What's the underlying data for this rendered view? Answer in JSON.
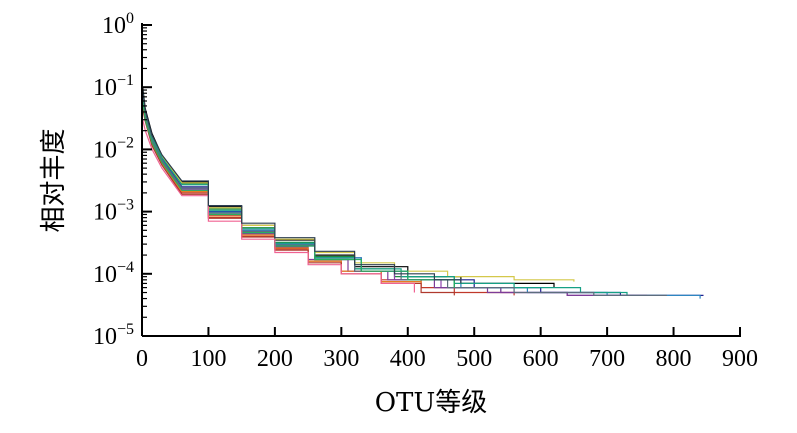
{
  "chart_data": {
    "type": "line",
    "title": "",
    "xlabel": "OTU等级",
    "ylabel": "相对丰度",
    "xlim": [
      0,
      900
    ],
    "ylim": [
      1e-05,
      1
    ],
    "yscale": "log",
    "grid": false,
    "legend": "none",
    "x_ticks": [
      0,
      100,
      200,
      300,
      400,
      500,
      600,
      700,
      800,
      900
    ],
    "x_tick_labels": [
      "0",
      "100",
      "200",
      "300",
      "400",
      "500",
      "600",
      "700",
      "800",
      "900"
    ],
    "y_ticks": [
      {
        "value": 1,
        "base": "10",
        "exp": "0"
      },
      {
        "value": 0.1,
        "base": "10",
        "exp": "−1"
      },
      {
        "value": 0.01,
        "base": "10",
        "exp": "−2"
      },
      {
        "value": 0.001,
        "base": "10",
        "exp": "−3"
      },
      {
        "value": 0.0001,
        "base": "10",
        "exp": "−4"
      },
      {
        "value": 1e-05,
        "base": "10",
        "exp": "−5"
      }
    ],
    "series": [
      {
        "color": "#000000",
        "values": [
          [
            1,
            0.1
          ],
          [
            5,
            0.045
          ],
          [
            15,
            0.018
          ],
          [
            30,
            0.008
          ],
          [
            60,
            0.003
          ],
          [
            100,
            0.0012
          ],
          [
            150,
            0.0006
          ],
          [
            200,
            0.00035
          ],
          [
            260,
            0.0002
          ],
          [
            320,
            0.00013
          ],
          [
            400,
            9e-05
          ],
          [
            480,
            7e-05
          ],
          [
            620,
            6e-05
          ]
        ]
      },
      {
        "color": "#1f1f8f",
        "values": [
          [
            1,
            0.07
          ],
          [
            5,
            0.035
          ],
          [
            15,
            0.015
          ],
          [
            30,
            0.007
          ],
          [
            60,
            0.0025
          ],
          [
            100,
            0.001
          ],
          [
            150,
            0.0005
          ],
          [
            200,
            0.0003
          ],
          [
            260,
            0.00018
          ],
          [
            330,
            0.00011
          ],
          [
            400,
            8e-05
          ],
          [
            500,
            6e-05
          ],
          [
            600,
            5e-05
          ],
          [
            720,
            4.5e-05
          ],
          [
            845,
            4.5e-05
          ]
        ]
      },
      {
        "color": "#1e8a3c",
        "values": [
          [
            1,
            0.09
          ],
          [
            5,
            0.04
          ],
          [
            15,
            0.016
          ],
          [
            30,
            0.0075
          ],
          [
            60,
            0.0028
          ],
          [
            100,
            0.0011
          ],
          [
            150,
            0.00055
          ],
          [
            200,
            0.00032
          ],
          [
            260,
            0.00019
          ],
          [
            320,
            0.00012
          ],
          [
            380,
            9e-05
          ],
          [
            470,
            6e-05
          ],
          [
            540,
            5e-05
          ]
        ]
      },
      {
        "color": "#c0392b",
        "values": [
          [
            1,
            0.05
          ],
          [
            5,
            0.03
          ],
          [
            15,
            0.012
          ],
          [
            30,
            0.006
          ],
          [
            60,
            0.002
          ],
          [
            100,
            0.0008
          ],
          [
            150,
            0.0004
          ],
          [
            200,
            0.00025
          ],
          [
            250,
            0.00016
          ],
          [
            300,
            0.00011
          ],
          [
            360,
            8e-05
          ],
          [
            420,
            6e-05
          ],
          [
            470,
            5e-05
          ],
          [
            560,
            4.5e-05
          ]
        ]
      },
      {
        "color": "#8e44ad",
        "values": [
          [
            1,
            0.06
          ],
          [
            5,
            0.032
          ],
          [
            15,
            0.013
          ],
          [
            30,
            0.0065
          ],
          [
            60,
            0.0023
          ],
          [
            100,
            0.0009
          ],
          [
            150,
            0.00045
          ],
          [
            200,
            0.00028
          ],
          [
            260,
            0.00017
          ],
          [
            320,
            0.00011
          ],
          [
            380,
            8e-05
          ],
          [
            450,
            6e-05
          ],
          [
            540,
            5e-05
          ],
          [
            640,
            4.5e-05
          ],
          [
            740,
            4.5e-05
          ]
        ]
      },
      {
        "color": "#d4c84a",
        "values": [
          [
            1,
            0.08
          ],
          [
            5,
            0.038
          ],
          [
            15,
            0.016
          ],
          [
            30,
            0.0078
          ],
          [
            60,
            0.0029
          ],
          [
            100,
            0.00115
          ],
          [
            150,
            0.0006
          ],
          [
            200,
            0.00036
          ],
          [
            260,
            0.00022
          ],
          [
            320,
            0.00015
          ],
          [
            380,
            0.00011
          ],
          [
            460,
            9e-05
          ],
          [
            560,
            8e-05
          ],
          [
            650,
            7.5e-05
          ]
        ]
      },
      {
        "color": "#2e86c1",
        "values": [
          [
            1,
            0.075
          ],
          [
            5,
            0.036
          ],
          [
            15,
            0.0145
          ],
          [
            30,
            0.0068
          ],
          [
            60,
            0.0024
          ],
          [
            100,
            0.00098
          ],
          [
            150,
            0.0005
          ],
          [
            200,
            0.0003
          ],
          [
            260,
            0.00018
          ],
          [
            330,
            0.00011
          ],
          [
            400,
            8e-05
          ],
          [
            480,
            6e-05
          ],
          [
            580,
            5e-05
          ],
          [
            700,
            4.5e-05
          ],
          [
            840,
            4e-05
          ]
        ]
      },
      {
        "color": "#7d3c98",
        "values": [
          [
            1,
            0.065
          ],
          [
            5,
            0.033
          ],
          [
            15,
            0.0135
          ],
          [
            30,
            0.0064
          ],
          [
            60,
            0.0022
          ],
          [
            100,
            0.00088
          ],
          [
            150,
            0.00044
          ],
          [
            200,
            0.00027
          ],
          [
            250,
            0.00017
          ],
          [
            310,
            0.00011
          ],
          [
            370,
            8e-05
          ],
          [
            440,
            6e-05
          ],
          [
            520,
            5e-05
          ],
          [
            640,
            4.5e-05
          ],
          [
            760,
            4.5e-05
          ]
        ]
      },
      {
        "color": "#e67e22",
        "values": [
          [
            1,
            0.055
          ],
          [
            5,
            0.031
          ],
          [
            15,
            0.0125
          ],
          [
            30,
            0.006
          ],
          [
            60,
            0.0021
          ],
          [
            100,
            0.00085
          ],
          [
            150,
            0.00042
          ],
          [
            200,
            0.00026
          ],
          [
            250,
            0.00016
          ],
          [
            300,
            0.00011
          ],
          [
            360,
            7.5e-05
          ],
          [
            420,
            6e-05
          ]
        ]
      },
      {
        "color": "#16a085",
        "values": [
          [
            1,
            0.085
          ],
          [
            5,
            0.039
          ],
          [
            15,
            0.0155
          ],
          [
            30,
            0.0074
          ],
          [
            60,
            0.0027
          ],
          [
            100,
            0.00105
          ],
          [
            150,
            0.00053
          ],
          [
            200,
            0.00031
          ],
          [
            260,
            0.00018
          ],
          [
            320,
            0.00012
          ],
          [
            390,
            9e-05
          ],
          [
            470,
            7e-05
          ],
          [
            560,
            6e-05
          ],
          [
            660,
            5e-05
          ],
          [
            730,
            4.5e-05
          ]
        ]
      },
      {
        "color": "#b03a2e",
        "values": [
          [
            1,
            0.045
          ],
          [
            5,
            0.028
          ],
          [
            15,
            0.0115
          ],
          [
            30,
            0.0056
          ],
          [
            60,
            0.0019
          ],
          [
            100,
            0.00078
          ],
          [
            150,
            0.00039
          ],
          [
            200,
            0.00024
          ],
          [
            250,
            0.00015
          ],
          [
            300,
            0.0001
          ],
          [
            360,
            7e-05
          ],
          [
            420,
            5e-05
          ],
          [
            470,
            4.5e-05
          ]
        ]
      },
      {
        "color": "#5d6d7e",
        "values": [
          [
            1,
            0.07
          ],
          [
            5,
            0.034
          ],
          [
            15,
            0.014
          ],
          [
            30,
            0.0067
          ],
          [
            60,
            0.0024
          ],
          [
            100,
            0.00095
          ],
          [
            150,
            0.00048
          ],
          [
            200,
            0.00029
          ],
          [
            260,
            0.00017
          ],
          [
            320,
            0.00011
          ],
          [
            390,
            8e-05
          ],
          [
            460,
            6e-05
          ],
          [
            560,
            5e-05
          ],
          [
            680,
            4.5e-05
          ],
          [
            790,
            4.5e-05
          ]
        ]
      },
      {
        "color": "#27ae60",
        "values": [
          [
            1,
            0.06
          ],
          [
            5,
            0.03
          ],
          [
            15,
            0.0128
          ],
          [
            30,
            0.0062
          ],
          [
            60,
            0.0022
          ],
          [
            100,
            0.0009
          ],
          [
            150,
            0.00046
          ],
          [
            200,
            0.00028
          ],
          [
            260,
            0.00017
          ],
          [
            330,
            0.00011
          ],
          [
            400,
            8e-05
          ],
          [
            470,
            6e-05
          ]
        ]
      },
      {
        "color": "#f06292",
        "values": [
          [
            1,
            0.03
          ],
          [
            5,
            0.02
          ],
          [
            15,
            0.01
          ],
          [
            30,
            0.005
          ],
          [
            60,
            0.0018
          ],
          [
            100,
            0.0007
          ],
          [
            150,
            0.00036
          ],
          [
            200,
            0.00022
          ],
          [
            250,
            0.00014
          ],
          [
            300,
            0.0001
          ],
          [
            360,
            7e-05
          ],
          [
            410,
            5e-05
          ]
        ]
      },
      {
        "color": "#2c3e50",
        "values": [
          [
            1,
            0.09
          ],
          [
            5,
            0.042
          ],
          [
            15,
            0.017
          ],
          [
            30,
            0.0082
          ],
          [
            60,
            0.0031
          ],
          [
            100,
            0.00125
          ],
          [
            150,
            0.00065
          ],
          [
            200,
            0.00038
          ],
          [
            260,
            0.00023
          ],
          [
            320,
            0.00014
          ],
          [
            380,
            0.0001
          ],
          [
            440,
            8e-05
          ],
          [
            480,
            7e-05
          ]
        ]
      }
    ]
  }
}
